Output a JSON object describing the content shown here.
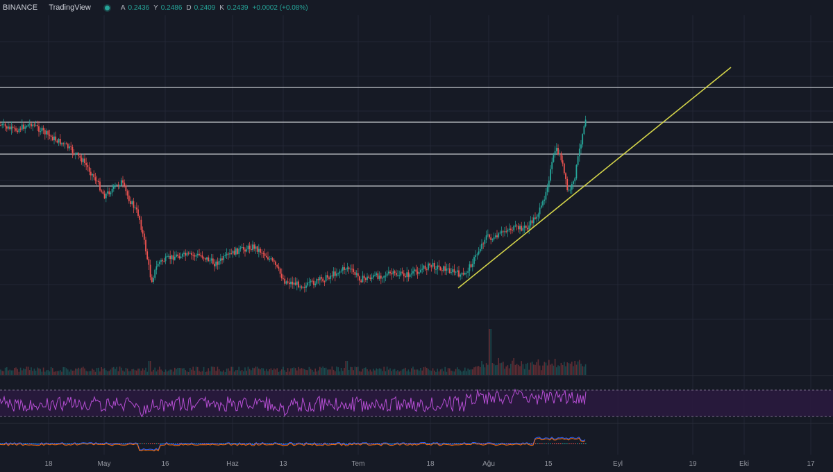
{
  "header": {
    "exchange": "BINANCE",
    "brand": "TradingView",
    "ohlc": [
      {
        "label": "A",
        "value": "0.2436"
      },
      {
        "label": "Y",
        "value": "0.2486"
      },
      {
        "label": "D",
        "value": "0.2409"
      },
      {
        "label": "K",
        "value": "0.2439"
      }
    ],
    "change": "+0.0002 (+0.08%)"
  },
  "xaxis": {
    "labels": [
      "18",
      "May",
      "16",
      "Haz",
      "13",
      "Tem",
      "18",
      "Ağu",
      "15",
      "Eyl",
      "19",
      "Eki",
      "17"
    ]
  },
  "colors": {
    "background": "#161a25",
    "grid": "#232735",
    "up": "#26a69a",
    "down": "#ef5350",
    "level_line": "#c7c9cf",
    "trendline": "#d4d44a",
    "rsi": "#b84fd6",
    "rsi_band": "#2a1a3f"
  },
  "icons": {
    "status": "live-status-dot-icon"
  }
}
